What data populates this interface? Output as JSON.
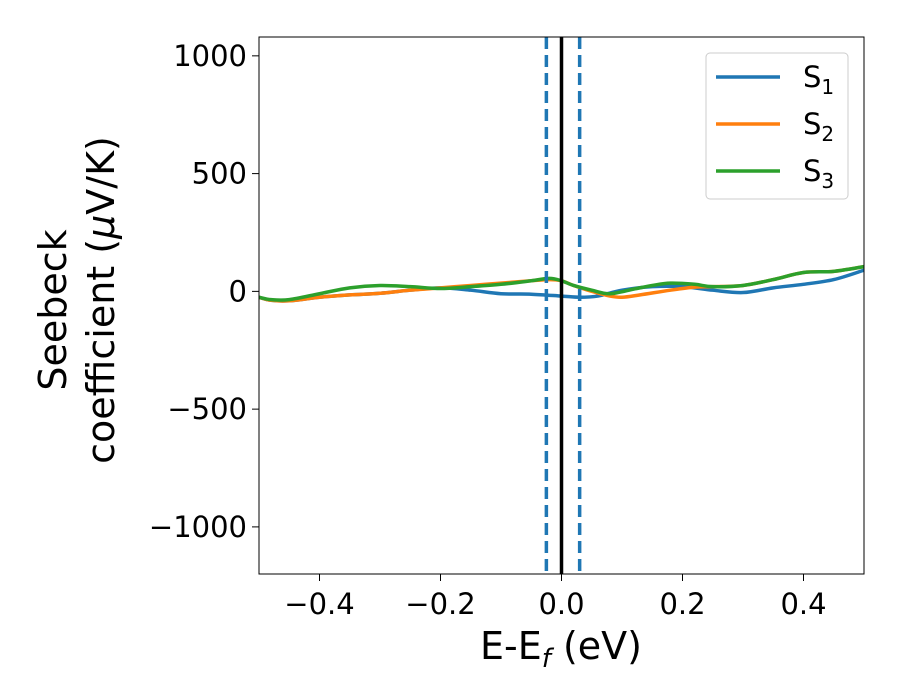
{
  "chart_data": {
    "type": "line",
    "xlabel": "E-E",
    "xlabel_sub": "f",
    "xlabel_unit": " (eV)",
    "ylabel_line1": "Seebeck",
    "ylabel_line2": "coefficient  (",
    "ylabel_mu": "μ",
    "ylabel_unit": "V/K)",
    "xlim": [
      -0.5,
      0.5
    ],
    "ylim": [
      -1200,
      1080
    ],
    "xticks": [
      -0.4,
      -0.2,
      0.0,
      0.2,
      0.4
    ],
    "xtick_labels": [
      "−0.4",
      "−0.2",
      "0.0",
      "0.2",
      "0.4"
    ],
    "yticks": [
      -1000,
      -500,
      0,
      500,
      1000
    ],
    "ytick_labels": [
      "−1000",
      "−500",
      "0",
      "500",
      "1000"
    ],
    "grid": false,
    "legend_position": "top-right",
    "vlines": [
      {
        "x": 0.0,
        "color": "#000000",
        "style": "solid"
      },
      {
        "x": -0.025,
        "color": "#1f77b4",
        "style": "dashed"
      },
      {
        "x": 0.03,
        "color": "#1f77b4",
        "style": "dashed"
      }
    ],
    "series": [
      {
        "name": "S",
        "sub": "1",
        "color": "#1f77b4",
        "x": [
          -0.5,
          -0.48,
          -0.45,
          -0.4,
          -0.35,
          -0.3,
          -0.25,
          -0.2,
          -0.15,
          -0.1,
          -0.05,
          0.0,
          0.03,
          0.06,
          0.1,
          0.15,
          0.2,
          0.25,
          0.3,
          0.35,
          0.4,
          0.45,
          0.5
        ],
        "y": [
          -25,
          -38,
          -40,
          -25,
          -15,
          -8,
          5,
          15,
          5,
          -10,
          -12,
          -20,
          -25,
          -20,
          5,
          20,
          20,
          5,
          -5,
          15,
          30,
          50,
          90
        ]
      },
      {
        "name": "S",
        "sub": "2",
        "color": "#ff7f0e",
        "x": [
          -0.5,
          -0.48,
          -0.45,
          -0.4,
          -0.35,
          -0.3,
          -0.25,
          -0.2,
          -0.15,
          -0.1,
          -0.05,
          -0.02,
          0.0,
          0.02,
          0.05,
          0.08,
          0.1,
          0.13,
          0.18,
          0.22,
          0.25,
          0.3,
          0.35,
          0.4,
          0.45,
          0.5
        ],
        "y": [
          -25,
          -38,
          -40,
          -25,
          -15,
          -8,
          5,
          15,
          25,
          35,
          45,
          50,
          45,
          25,
          0,
          -20,
          -25,
          -15,
          5,
          18,
          20,
          25,
          50,
          80,
          85,
          105
        ]
      },
      {
        "name": "S",
        "sub": "3",
        "color": "#2ca02c",
        "x": [
          -0.5,
          -0.48,
          -0.45,
          -0.4,
          -0.35,
          -0.3,
          -0.25,
          -0.2,
          -0.15,
          -0.1,
          -0.05,
          -0.02,
          0.0,
          0.02,
          0.05,
          0.08,
          0.12,
          0.15,
          0.18,
          0.22,
          0.25,
          0.3,
          0.35,
          0.4,
          0.45,
          0.5
        ],
        "y": [
          -25,
          -35,
          -35,
          -10,
          15,
          25,
          20,
          12,
          20,
          30,
          45,
          55,
          45,
          25,
          5,
          -10,
          10,
          25,
          35,
          30,
          20,
          25,
          50,
          80,
          85,
          105
        ]
      }
    ]
  }
}
